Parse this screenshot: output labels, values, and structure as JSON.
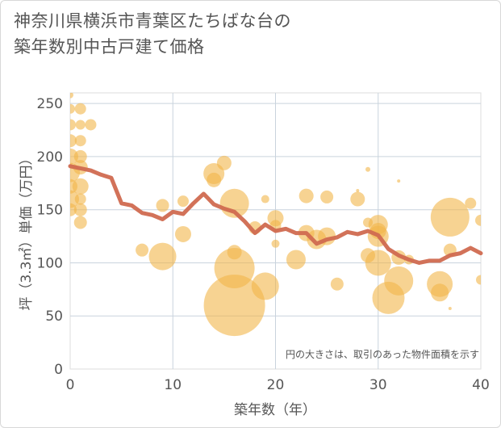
{
  "title_lines": [
    "神奈川県横浜市青葉区たちばな台の",
    "築年数別中古戸建て価格"
  ],
  "chart_data": {
    "type": "scatter",
    "title": "神奈川県横浜市青葉区たちばな台の築年数別中古戸建て価格",
    "xlabel": "築年数（年）",
    "ylabel": "坪（3.3㎡）単価（万円）",
    "xlim": [
      0,
      40
    ],
    "ylim": [
      0,
      260
    ],
    "xticks": [
      0,
      10,
      20,
      30,
      40
    ],
    "yticks": [
      0,
      50,
      100,
      150,
      200,
      250
    ],
    "grid": true,
    "annotation": "円の大きさは、取引のあった物件面積を示す",
    "bubble_color": "#f2b64a",
    "line_color": "#d06a50",
    "bubbles": [
      {
        "x": 0,
        "y": 258,
        "s": 4
      },
      {
        "x": 0,
        "y": 245,
        "s": 6
      },
      {
        "x": 0,
        "y": 230,
        "s": 7
      },
      {
        "x": 0,
        "y": 215,
        "s": 8
      },
      {
        "x": 0,
        "y": 200,
        "s": 10
      },
      {
        "x": 0,
        "y": 185,
        "s": 12
      },
      {
        "x": 0,
        "y": 172,
        "s": 9
      },
      {
        "x": 0,
        "y": 160,
        "s": 11
      },
      {
        "x": 0,
        "y": 150,
        "s": 8
      },
      {
        "x": 1,
        "y": 245,
        "s": 7
      },
      {
        "x": 1,
        "y": 230,
        "s": 6
      },
      {
        "x": 1,
        "y": 215,
        "s": 7
      },
      {
        "x": 1,
        "y": 200,
        "s": 8
      },
      {
        "x": 1,
        "y": 190,
        "s": 9
      },
      {
        "x": 1,
        "y": 172,
        "s": 10
      },
      {
        "x": 1,
        "y": 160,
        "s": 7
      },
      {
        "x": 1,
        "y": 150,
        "s": 8
      },
      {
        "x": 1,
        "y": 138,
        "s": 8
      },
      {
        "x": 2,
        "y": 230,
        "s": 7
      },
      {
        "x": 7,
        "y": 112,
        "s": 8
      },
      {
        "x": 9,
        "y": 106,
        "s": 17
      },
      {
        "x": 9,
        "y": 154,
        "s": 8
      },
      {
        "x": 11,
        "y": 158,
        "s": 7
      },
      {
        "x": 11,
        "y": 127,
        "s": 10
      },
      {
        "x": 14,
        "y": 184,
        "s": 13
      },
      {
        "x": 14,
        "y": 178,
        "s": 9
      },
      {
        "x": 15,
        "y": 194,
        "s": 9
      },
      {
        "x": 16,
        "y": 156,
        "s": 18
      },
      {
        "x": 16,
        "y": 110,
        "s": 9
      },
      {
        "x": 16,
        "y": 95,
        "s": 25
      },
      {
        "x": 16,
        "y": 60,
        "s": 38
      },
      {
        "x": 18,
        "y": 133,
        "s": 8
      },
      {
        "x": 19,
        "y": 160,
        "s": 5
      },
      {
        "x": 19,
        "y": 78,
        "s": 17
      },
      {
        "x": 20,
        "y": 142,
        "s": 10
      },
      {
        "x": 20,
        "y": 135,
        "s": 7
      },
      {
        "x": 20,
        "y": 118,
        "s": 5
      },
      {
        "x": 22,
        "y": 103,
        "s": 12
      },
      {
        "x": 23,
        "y": 163,
        "s": 9
      },
      {
        "x": 23,
        "y": 128,
        "s": 10
      },
      {
        "x": 24,
        "y": 122,
        "s": 12
      },
      {
        "x": 25,
        "y": 162,
        "s": 8
      },
      {
        "x": 25,
        "y": 125,
        "s": 11
      },
      {
        "x": 26,
        "y": 80,
        "s": 8
      },
      {
        "x": 28,
        "y": 168,
        "s": 2
      },
      {
        "x": 28,
        "y": 160,
        "s": 9
      },
      {
        "x": 29,
        "y": 188,
        "s": 3
      },
      {
        "x": 29,
        "y": 138,
        "s": 6
      },
      {
        "x": 29,
        "y": 107,
        "s": 9
      },
      {
        "x": 30,
        "y": 136,
        "s": 12
      },
      {
        "x": 30,
        "y": 130,
        "s": 10
      },
      {
        "x": 30,
        "y": 125,
        "s": 13
      },
      {
        "x": 30,
        "y": 100,
        "s": 16
      },
      {
        "x": 31,
        "y": 67,
        "s": 20
      },
      {
        "x": 32,
        "y": 177,
        "s": 2
      },
      {
        "x": 32,
        "y": 105,
        "s": 9
      },
      {
        "x": 32,
        "y": 83,
        "s": 18
      },
      {
        "x": 33,
        "y": 103,
        "s": 6
      },
      {
        "x": 36,
        "y": 80,
        "s": 16
      },
      {
        "x": 36,
        "y": 72,
        "s": 11
      },
      {
        "x": 37,
        "y": 143,
        "s": 24
      },
      {
        "x": 37,
        "y": 57,
        "s": 2
      },
      {
        "x": 37,
        "y": 112,
        "s": 8
      },
      {
        "x": 39,
        "y": 156,
        "s": 7
      },
      {
        "x": 40,
        "y": 140,
        "s": 7
      },
      {
        "x": 40,
        "y": 84,
        "s": 6
      }
    ],
    "line": {
      "x": [
        0,
        1,
        2,
        3,
        4,
        5,
        6,
        7,
        8,
        9,
        10,
        11,
        12,
        13,
        14,
        15,
        16,
        17,
        18,
        19,
        20,
        21,
        22,
        23,
        24,
        25,
        26,
        27,
        28,
        29,
        30,
        31,
        32,
        33,
        34,
        35,
        36,
        37,
        38,
        39,
        40
      ],
      "y": [
        191,
        189,
        187,
        183,
        180,
        156,
        154,
        147,
        145,
        141,
        148,
        146,
        156,
        165,
        155,
        151,
        148,
        139,
        128,
        136,
        130,
        132,
        128,
        128,
        118,
        122,
        124,
        129,
        127,
        130,
        126,
        113,
        107,
        103,
        100,
        102,
        102,
        107,
        109,
        114,
        109
      ]
    }
  }
}
